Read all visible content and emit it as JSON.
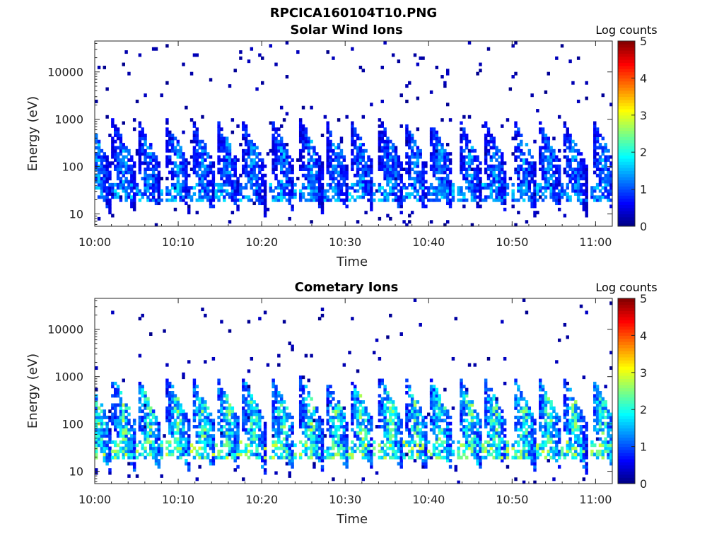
{
  "figure_title": "RPCICA160104T10.PNG",
  "chart_data": [
    {
      "type": "heatmap",
      "title": "Solar Wind Ions",
      "xlabel": "Time",
      "ylabel": "Energy (eV)",
      "x_tick_labels": [
        "10:00",
        "10:10",
        "10:20",
        "10:30",
        "10:40",
        "10:50",
        "11:00"
      ],
      "x_range": [
        "10:00",
        "11:02"
      ],
      "y_scale": "log",
      "y_tick_labels": [
        "10",
        "100",
        "1000",
        "10000"
      ],
      "y_range_ev": [
        5.5,
        45000
      ],
      "colorbar": {
        "label": "Log counts",
        "range": [
          0,
          5
        ],
        "ticks": [
          "0",
          "1",
          "2",
          "3",
          "4",
          "5"
        ],
        "colormap": "jet"
      },
      "description_data": {
        "burst_times_min": [
          0.5,
          3.5,
          6.5,
          10,
          13,
          16,
          19,
          22.5,
          26,
          29,
          32,
          35.5,
          38.5,
          41.5,
          45,
          48,
          51.5,
          54.5,
          57.5,
          61
        ],
        "peak_intensity": 1.8,
        "background_counts": 0.3
      }
    },
    {
      "type": "heatmap",
      "title": "Cometary Ions",
      "xlabel": "Time",
      "ylabel": "Energy (eV)",
      "x_tick_labels": [
        "10:00",
        "10:10",
        "10:20",
        "10:30",
        "10:40",
        "10:50",
        "11:00"
      ],
      "x_range": [
        "10:00",
        "11:02"
      ],
      "y_scale": "log",
      "y_tick_labels": [
        "10",
        "100",
        "1000",
        "10000"
      ],
      "y_range_ev": [
        5.5,
        45000
      ],
      "colorbar": {
        "label": "Log counts",
        "range": [
          0,
          5
        ],
        "ticks": [
          "0",
          "1",
          "2",
          "3",
          "4",
          "5"
        ],
        "colormap": "jet"
      },
      "description_data": {
        "burst_times_min": [
          0.5,
          3.5,
          6.5,
          10,
          13,
          16,
          19,
          22.5,
          26,
          29,
          32,
          35.5,
          38.5,
          41.5,
          45,
          48,
          51.5,
          54.5,
          57.5,
          61
        ],
        "peak_intensity": 3.0,
        "background_counts": 0.3
      }
    }
  ]
}
